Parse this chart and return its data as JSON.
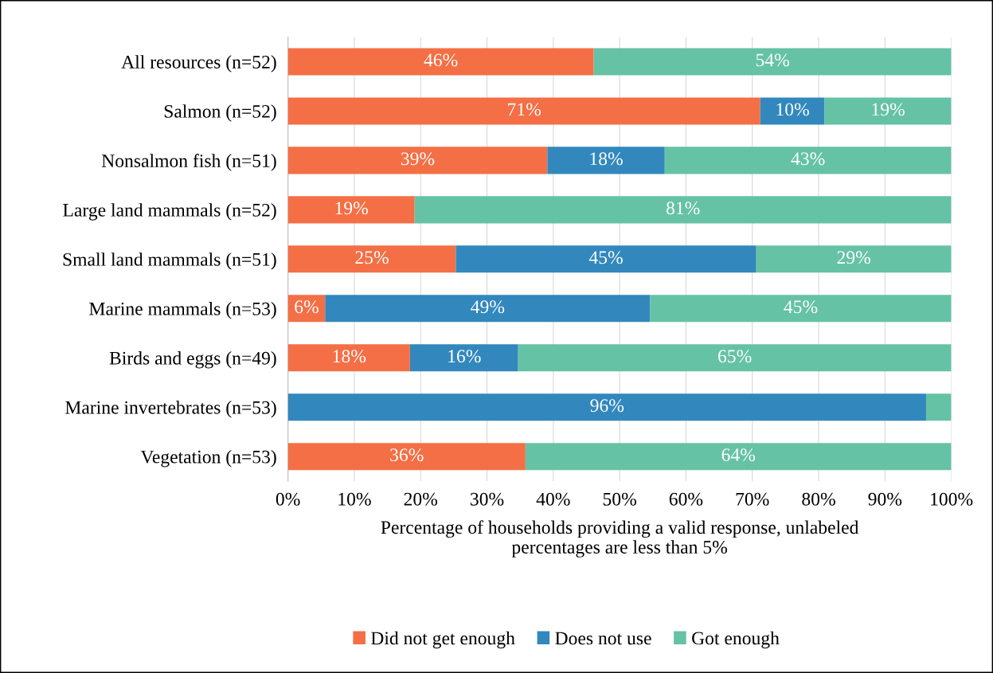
{
  "chart_data": {
    "type": "bar",
    "orientation": "horizontal",
    "stacked": true,
    "xlabel": "Percentage of households providing a valid response, unlabeled\npercentages are less than 5%",
    "categories": [
      "All resources (n=52)",
      "Salmon (n=52)",
      "Nonsalmon fish (n=51)",
      "Large land mammals (n=52)",
      "Small land mammals (n=51)",
      "Marine mammals (n=53)",
      "Birds and eggs (n=49)",
      "Marine invertebrates (n=53)",
      "Vegetation (n=53)"
    ],
    "series": [
      {
        "name": "Did not get enough",
        "color": "#f46f45",
        "values": [
          46.1,
          71.2,
          39.1,
          19.1,
          25.3,
          5.6,
          18.4,
          0,
          35.8
        ],
        "value_labels": [
          "46%",
          "71%",
          "39%",
          "19%",
          "25%",
          "6%",
          "18%",
          null,
          "36%"
        ]
      },
      {
        "name": "Does not use",
        "color": "#3288bd",
        "values": [
          0,
          9.7,
          17.7,
          0,
          45.3,
          49.0,
          16.3,
          96.2,
          0
        ],
        "value_labels": [
          null,
          "10%",
          "18%",
          null,
          "45%",
          "49%",
          "16%",
          "96%",
          null
        ]
      },
      {
        "name": "Got enough",
        "color": "#66c2a5",
        "values": [
          53.9,
          19.1,
          43.2,
          80.9,
          29.4,
          45.4,
          65.3,
          3.8,
          64.2
        ],
        "value_labels": [
          "54%",
          "19%",
          "43%",
          "81%",
          "29%",
          "45%",
          "65%",
          null,
          "64%"
        ]
      }
    ],
    "xlim": [
      0,
      100
    ],
    "xticks": [
      {
        "value": 0,
        "label": "0%"
      },
      {
        "value": 10,
        "label": "10%"
      },
      {
        "value": 20,
        "label": "20%"
      },
      {
        "value": 30,
        "label": "30%"
      },
      {
        "value": 40,
        "label": "40%"
      },
      {
        "value": 50,
        "label": "50%"
      },
      {
        "value": 60,
        "label": "60%"
      },
      {
        "value": 70,
        "label": "70%"
      },
      {
        "value": 80,
        "label": "80%"
      },
      {
        "value": 90,
        "label": "90%"
      },
      {
        "value": 100,
        "label": "100%"
      }
    ],
    "grid": "x",
    "legend": "bottom"
  }
}
